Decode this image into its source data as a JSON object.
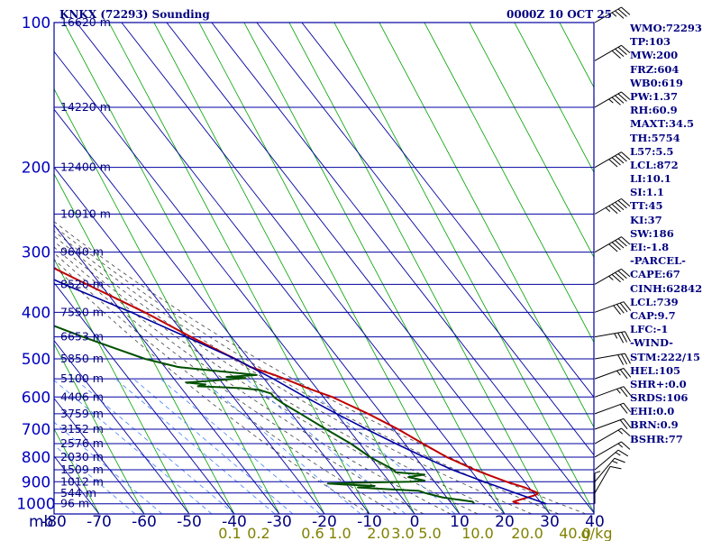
{
  "title_left": "KNKX (72293) Sounding",
  "title_right": "0000Z 10 OCT 25",
  "colors": {
    "frame": "#0000A0",
    "pressure_label": "#0000C0",
    "temp_label": "#000080",
    "dry_adiabat": "#00A000",
    "moist_adiabat": "#404040",
    "mixing_ratio": "#4080FF",
    "mixing_label": "#808000",
    "temperature": "#C00000",
    "dewpoint": "#005000",
    "parcel": "#0000A0",
    "wind": "#000000",
    "stats": "#000080"
  },
  "stats": [
    "WMO:72293",
    "TP:103",
    "MW:200",
    "FRZ:604",
    "WB0:619",
    "PW:1.37",
    "RH:60.9",
    "MAXT:34.5",
    "TH:5754",
    "L57:5.5",
    "LCL:872",
    "LI:10.1",
    "SI:1.1",
    "TT:45",
    "KI:37",
    "SW:186",
    "EI:-1.8",
    "-PARCEL-",
    "CAPE:67",
    "CINH:62842",
    "LCL:739",
    "CAP:9.7",
    "LFC:-1",
    "-WIND-",
    "STM:222/15",
    "HEL:105",
    "SHR+:0.0",
    "SRDS:106",
    "EHI:0.0",
    "BRN:0.9",
    "BSHR:77"
  ],
  "chart_data": {
    "type": "line",
    "subtype": "skew-T log-P",
    "xlabel": "mb",
    "x_ticks": [
      "-80",
      "-70",
      "-60",
      "-50",
      "-40",
      "-30",
      "-20",
      "-10",
      "0",
      "10",
      "20",
      "30",
      "40"
    ],
    "xlim": [
      -80,
      40
    ],
    "ylim": [
      1050,
      100
    ],
    "y_scale": "log",
    "pressure_ticks": [
      "100",
      "200",
      "300",
      "400",
      "500",
      "600",
      "700",
      "800",
      "900",
      "1000"
    ],
    "height_labels": [
      {
        "p": 100,
        "label": "16620 m"
      },
      {
        "p": 150,
        "label": "14220 m"
      },
      {
        "p": 200,
        "label": "12400 m"
      },
      {
        "p": 250,
        "label": "10910 m"
      },
      {
        "p": 300,
        "label": "9640 m"
      },
      {
        "p": 350,
        "label": "8520 m"
      },
      {
        "p": 400,
        "label": "7550 m"
      },
      {
        "p": 450,
        "label": "6653 m"
      },
      {
        "p": 500,
        "label": "5850 m"
      },
      {
        "p": 550,
        "label": "5100 m"
      },
      {
        "p": 600,
        "label": "4406 m"
      },
      {
        "p": 650,
        "label": "3759 m"
      },
      {
        "p": 700,
        "label": "3152 m"
      },
      {
        "p": 750,
        "label": "2576 m"
      },
      {
        "p": 800,
        "label": "2030 m"
      },
      {
        "p": 850,
        "label": "1509 m"
      },
      {
        "p": 900,
        "label": "1012 m"
      },
      {
        "p": 950,
        "label": "544 m"
      },
      {
        "p": 1000,
        "label": "96 m"
      }
    ],
    "mixing_ratio_labels": [
      "0.1",
      "0.2",
      "0.6",
      "1.0",
      "2.0",
      "3.0",
      "5.0",
      "10.0",
      "20.0",
      "40.0",
      "g/kg"
    ],
    "series": [
      {
        "key": "temperature",
        "points": [
          [
            1000,
            25
          ],
          [
            990,
            24
          ],
          [
            975,
            27
          ],
          [
            960,
            30
          ],
          [
            950,
            31
          ],
          [
            925,
            29
          ],
          [
            900,
            26
          ],
          [
            870,
            23
          ],
          [
            850,
            21
          ],
          [
            800,
            17
          ],
          [
            750,
            14
          ],
          [
            700,
            11
          ],
          [
            650,
            7
          ],
          [
            620,
            4
          ],
          [
            600,
            2
          ],
          [
            575,
            -2
          ],
          [
            560,
            -4
          ],
          [
            540,
            -7
          ],
          [
            520,
            -11
          ],
          [
            500,
            -13
          ],
          [
            450,
            -19
          ],
          [
            400,
            -25
          ],
          [
            350,
            -33
          ],
          [
            300,
            -42
          ],
          [
            250,
            -51
          ],
          [
            200,
            -58
          ],
          [
            150,
            -70
          ],
          [
            120,
            -74
          ],
          [
            100,
            -80
          ]
        ]
      },
      {
        "key": "dewpoint",
        "points": [
          [
            1000,
            15
          ],
          [
            990,
            15
          ],
          [
            970,
            9
          ],
          [
            950,
            6
          ],
          [
            940,
            5
          ],
          [
            930,
            -4
          ],
          [
            925,
            -8
          ],
          [
            918,
            -4
          ],
          [
            912,
            -11
          ],
          [
            908,
            -14
          ],
          [
            903,
            -4
          ],
          [
            900,
            5
          ],
          [
            895,
            8
          ],
          [
            880,
            5
          ],
          [
            870,
            9
          ],
          [
            860,
            3
          ],
          [
            850,
            3
          ],
          [
            800,
            0
          ],
          [
            750,
            -2
          ],
          [
            700,
            -5
          ],
          [
            650,
            -8
          ],
          [
            620,
            -10
          ],
          [
            600,
            -11
          ],
          [
            590,
            -11
          ],
          [
            580,
            -13
          ],
          [
            575,
            -17
          ],
          [
            570,
            -26
          ],
          [
            565,
            -24
          ],
          [
            560,
            -28
          ],
          [
            555,
            -22
          ],
          [
            548,
            -14
          ],
          [
            545,
            -18
          ],
          [
            540,
            -11
          ],
          [
            520,
            -27
          ],
          [
            500,
            -33
          ],
          [
            450,
            -43
          ],
          [
            400,
            -53
          ],
          [
            350,
            -58
          ],
          [
            300,
            -64
          ],
          [
            250,
            -70
          ],
          [
            200,
            -80
          ]
        ]
      },
      {
        "key": "parcel",
        "points": [
          [
            1000,
            31
          ],
          [
            950,
            26
          ],
          [
            900,
            21
          ],
          [
            850,
            16
          ],
          [
            800,
            12
          ],
          [
            750,
            8
          ],
          [
            700,
            4
          ],
          [
            650,
            0
          ],
          [
            600,
            -4
          ],
          [
            550,
            -8
          ],
          [
            500,
            -13
          ],
          [
            450,
            -20
          ],
          [
            400,
            -28
          ],
          [
            350,
            -38
          ],
          [
            300,
            -48
          ],
          [
            250,
            -60
          ],
          [
            200,
            -72
          ],
          [
            170,
            -80
          ]
        ]
      }
    ],
    "wind_barbs": [
      {
        "p": 1000,
        "dir": 180,
        "spd": 5
      },
      {
        "p": 950,
        "dir": 210,
        "spd": 10
      },
      {
        "p": 900,
        "dir": 220,
        "spd": 15
      },
      {
        "p": 850,
        "dir": 230,
        "spd": 15
      },
      {
        "p": 800,
        "dir": 240,
        "spd": 15
      },
      {
        "p": 750,
        "dir": 240,
        "spd": 15
      },
      {
        "p": 700,
        "dir": 250,
        "spd": 20
      },
      {
        "p": 650,
        "dir": 250,
        "spd": 20
      },
      {
        "p": 600,
        "dir": 250,
        "spd": 25
      },
      {
        "p": 550,
        "dir": 250,
        "spd": 25
      },
      {
        "p": 500,
        "dir": 260,
        "spd": 30
      },
      {
        "p": 450,
        "dir": 260,
        "spd": 35
      },
      {
        "p": 400,
        "dir": 250,
        "spd": 40
      },
      {
        "p": 350,
        "dir": 240,
        "spd": 45
      },
      {
        "p": 300,
        "dir": 240,
        "spd": 50
      },
      {
        "p": 250,
        "dir": 240,
        "spd": 55
      },
      {
        "p": 200,
        "dir": 240,
        "spd": 50
      },
      {
        "p": 150,
        "dir": 240,
        "spd": 45
      },
      {
        "p": 120,
        "dir": 240,
        "spd": 40
      },
      {
        "p": 100,
        "dir": 240,
        "spd": 35
      }
    ],
    "grid": true
  }
}
